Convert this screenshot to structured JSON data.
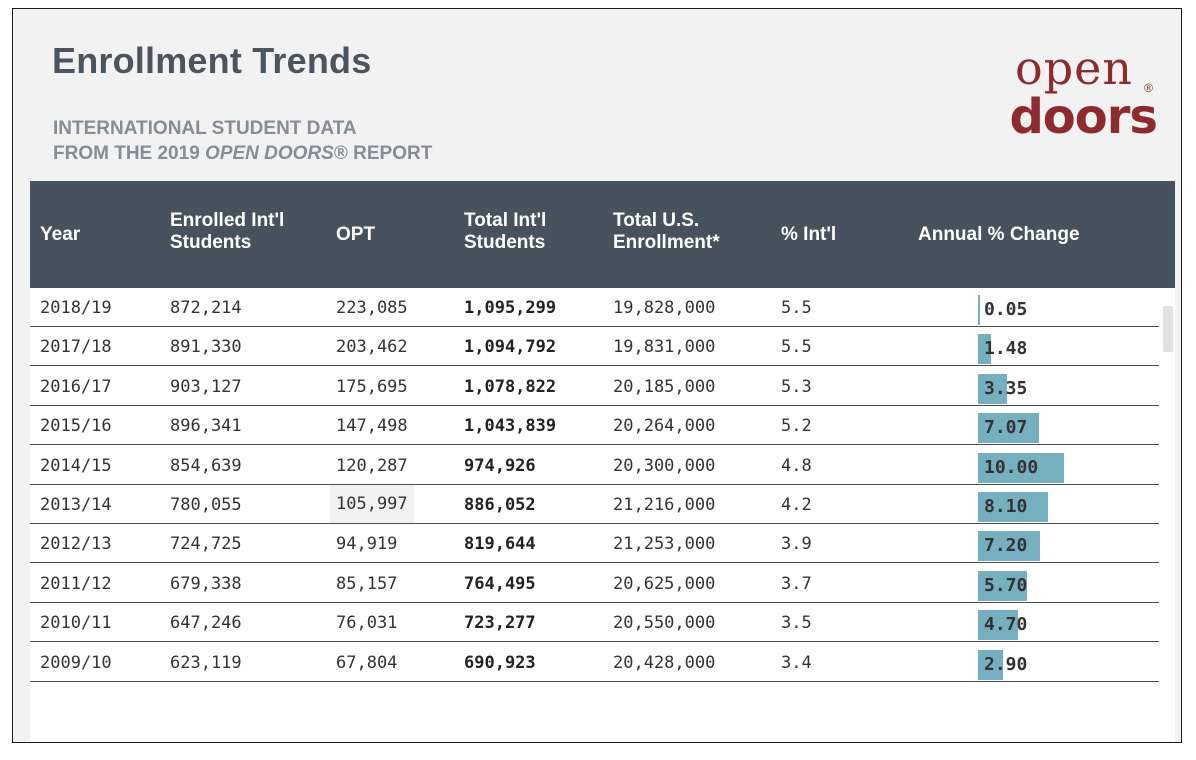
{
  "header": {
    "title": "Enrollment Trends",
    "subtitle_line1": "INTERNATIONAL STUDENT DATA",
    "subtitle_line2_prefix": "FROM THE 2019 ",
    "subtitle_line2_em": "OPEN DOORS",
    "subtitle_line2_suffix": "® REPORT"
  },
  "logo": {
    "top": "open",
    "bottom": "doors",
    "reg": "®",
    "color": "#8f2a2e"
  },
  "colors": {
    "header_bg": "#46535f",
    "bar": "#76afc0",
    "frame_bg": "#f2f2f2"
  },
  "chart_data": {
    "type": "table",
    "columns": [
      {
        "line1": "Year",
        "line2": ""
      },
      {
        "line1": "Enrolled Int'l",
        "line2": "Students"
      },
      {
        "line1": "OPT",
        "line2": ""
      },
      {
        "line1": "Total Int'l",
        "line2": "Students"
      },
      {
        "line1": "Total U.S.",
        "line2": "Enrollment*"
      },
      {
        "line1": "% Int'l",
        "line2": ""
      },
      {
        "line1": "Annual % Change",
        "line2": ""
      }
    ],
    "rows": [
      {
        "year": "2018/19",
        "enrolled": "872,214",
        "opt": "223,085",
        "total_intl": "1,095,299",
        "total_us": "19,828,000",
        "pct_intl": "5.5",
        "annual_change": "0.05",
        "change_value": 0.05
      },
      {
        "year": "2017/18",
        "enrolled": "891,330",
        "opt": "203,462",
        "total_intl": "1,094,792",
        "total_us": "19,831,000",
        "pct_intl": "5.5",
        "annual_change": "1.48",
        "change_value": 1.48
      },
      {
        "year": "2016/17",
        "enrolled": "903,127",
        "opt": "175,695",
        "total_intl": "1,078,822",
        "total_us": "20,185,000",
        "pct_intl": "5.3",
        "annual_change": "3.35",
        "change_value": 3.35
      },
      {
        "year": "2015/16",
        "enrolled": "896,341",
        "opt": "147,498",
        "total_intl": "1,043,839",
        "total_us": "20,264,000",
        "pct_intl": "5.2",
        "annual_change": "7.07",
        "change_value": 7.07
      },
      {
        "year": "2014/15",
        "enrolled": "854,639",
        "opt": "120,287",
        "total_intl": "974,926",
        "total_us": "20,300,000",
        "pct_intl": "4.8",
        "annual_change": "10.00",
        "change_value": 10.0
      },
      {
        "year": "2013/14",
        "enrolled": "780,055",
        "opt": "105,997",
        "total_intl": "886,052",
        "total_us": "21,216,000",
        "pct_intl": "4.2",
        "annual_change": "8.10",
        "change_value": 8.1
      },
      {
        "year": "2012/13",
        "enrolled": "724,725",
        "opt": "94,919",
        "total_intl": "819,644",
        "total_us": "21,253,000",
        "pct_intl": "3.9",
        "annual_change": "7.20",
        "change_value": 7.2
      },
      {
        "year": "2011/12",
        "enrolled": "679,338",
        "opt": "85,157",
        "total_intl": "764,495",
        "total_us": "20,625,000",
        "pct_intl": "3.7",
        "annual_change": "5.70",
        "change_value": 5.7
      },
      {
        "year": "2010/11",
        "enrolled": "647,246",
        "opt": "76,031",
        "total_intl": "723,277",
        "total_us": "20,550,000",
        "pct_intl": "3.5",
        "annual_change": "4.70",
        "change_value": 4.7
      },
      {
        "year": "2009/10",
        "enrolled": "623,119",
        "opt": "67,804",
        "total_intl": "690,923",
        "total_us": "20,428,000",
        "pct_intl": "3.4",
        "annual_change": "2.90",
        "change_value": 2.9
      }
    ],
    "bar_max": 10.0
  }
}
